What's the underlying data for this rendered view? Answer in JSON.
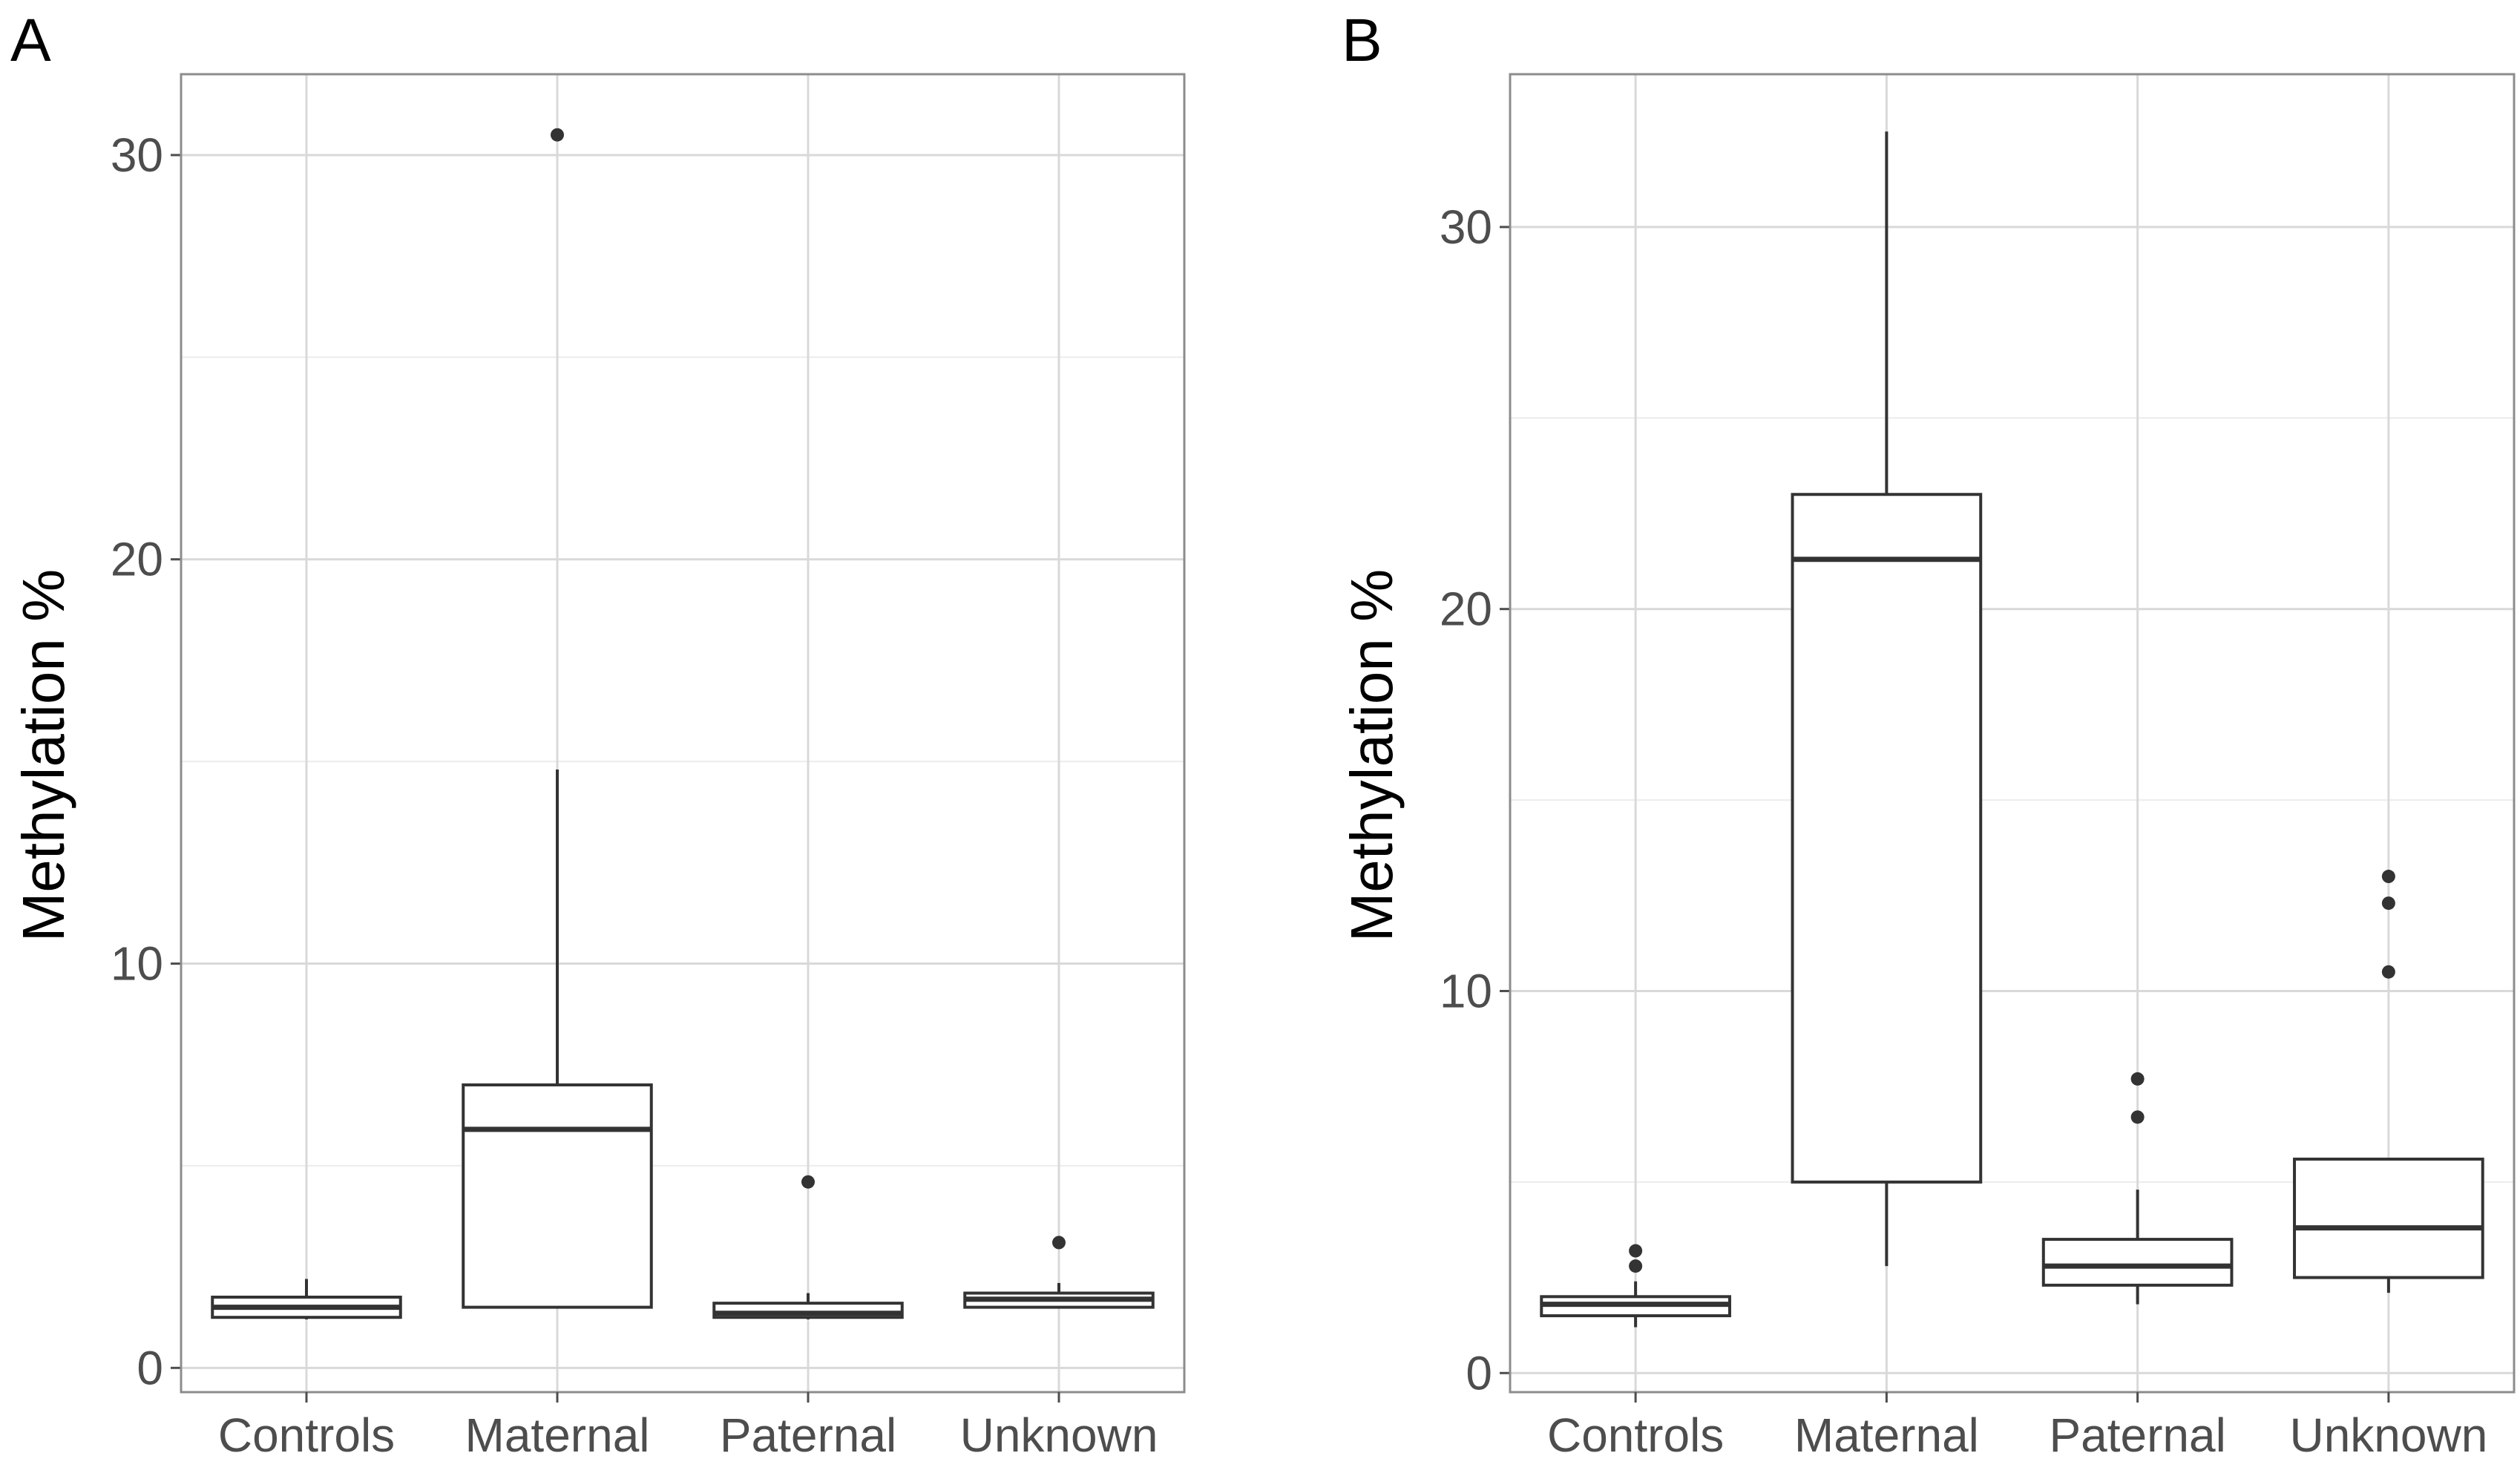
{
  "chart_data": [
    {
      "type": "boxplot",
      "panel_label": "A",
      "ylabel": "Methylation %",
      "xlabel": "",
      "ylim": [
        -0.6,
        32
      ],
      "yticks": [
        0,
        10,
        20,
        30
      ],
      "grid": true,
      "categories": [
        "Controls",
        "Maternal",
        "Paternal",
        "Unknown"
      ],
      "boxes": [
        {
          "name": "Controls",
          "whisker_low": 1.2,
          "q1": 1.25,
          "median": 1.5,
          "q3": 1.75,
          "whisker_high": 2.2,
          "outliers": []
        },
        {
          "name": "Maternal",
          "whisker_low": 1.5,
          "q1": 1.5,
          "median": 5.9,
          "q3": 7.0,
          "whisker_high": 14.8,
          "outliers": [
            30.5
          ]
        },
        {
          "name": "Paternal",
          "whisker_low": 1.2,
          "q1": 1.25,
          "median": 1.35,
          "q3": 1.6,
          "whisker_high": 1.85,
          "outliers": [
            4.6
          ]
        },
        {
          "name": "Unknown",
          "whisker_low": 1.5,
          "q1": 1.5,
          "median": 1.7,
          "q3": 1.85,
          "whisker_high": 2.1,
          "outliers": [
            3.1
          ]
        }
      ]
    },
    {
      "type": "boxplot",
      "panel_label": "B",
      "ylabel": "Methylation %",
      "xlabel": "",
      "ylim": [
        -0.5,
        34
      ],
      "yticks": [
        0,
        10,
        20,
        30
      ],
      "grid": true,
      "categories": [
        "Controls",
        "Maternal",
        "Paternal",
        "Unknown"
      ],
      "boxes": [
        {
          "name": "Controls",
          "whisker_low": 1.2,
          "q1": 1.5,
          "median": 1.8,
          "q3": 2.0,
          "whisker_high": 2.4,
          "outliers": [
            2.8,
            3.2
          ]
        },
        {
          "name": "Maternal",
          "whisker_low": 2.8,
          "q1": 5.0,
          "median": 21.3,
          "q3": 23.0,
          "whisker_high": 32.5,
          "outliers": []
        },
        {
          "name": "Paternal",
          "whisker_low": 1.8,
          "q1": 2.3,
          "median": 2.8,
          "q3": 3.5,
          "whisker_high": 4.8,
          "outliers": [
            6.7,
            7.7
          ]
        },
        {
          "name": "Unknown",
          "whisker_low": 2.1,
          "q1": 2.5,
          "median": 3.8,
          "q3": 5.6,
          "whisker_high": 5.6,
          "outliers": [
            10.5,
            12.3,
            13.0
          ]
        }
      ]
    }
  ]
}
